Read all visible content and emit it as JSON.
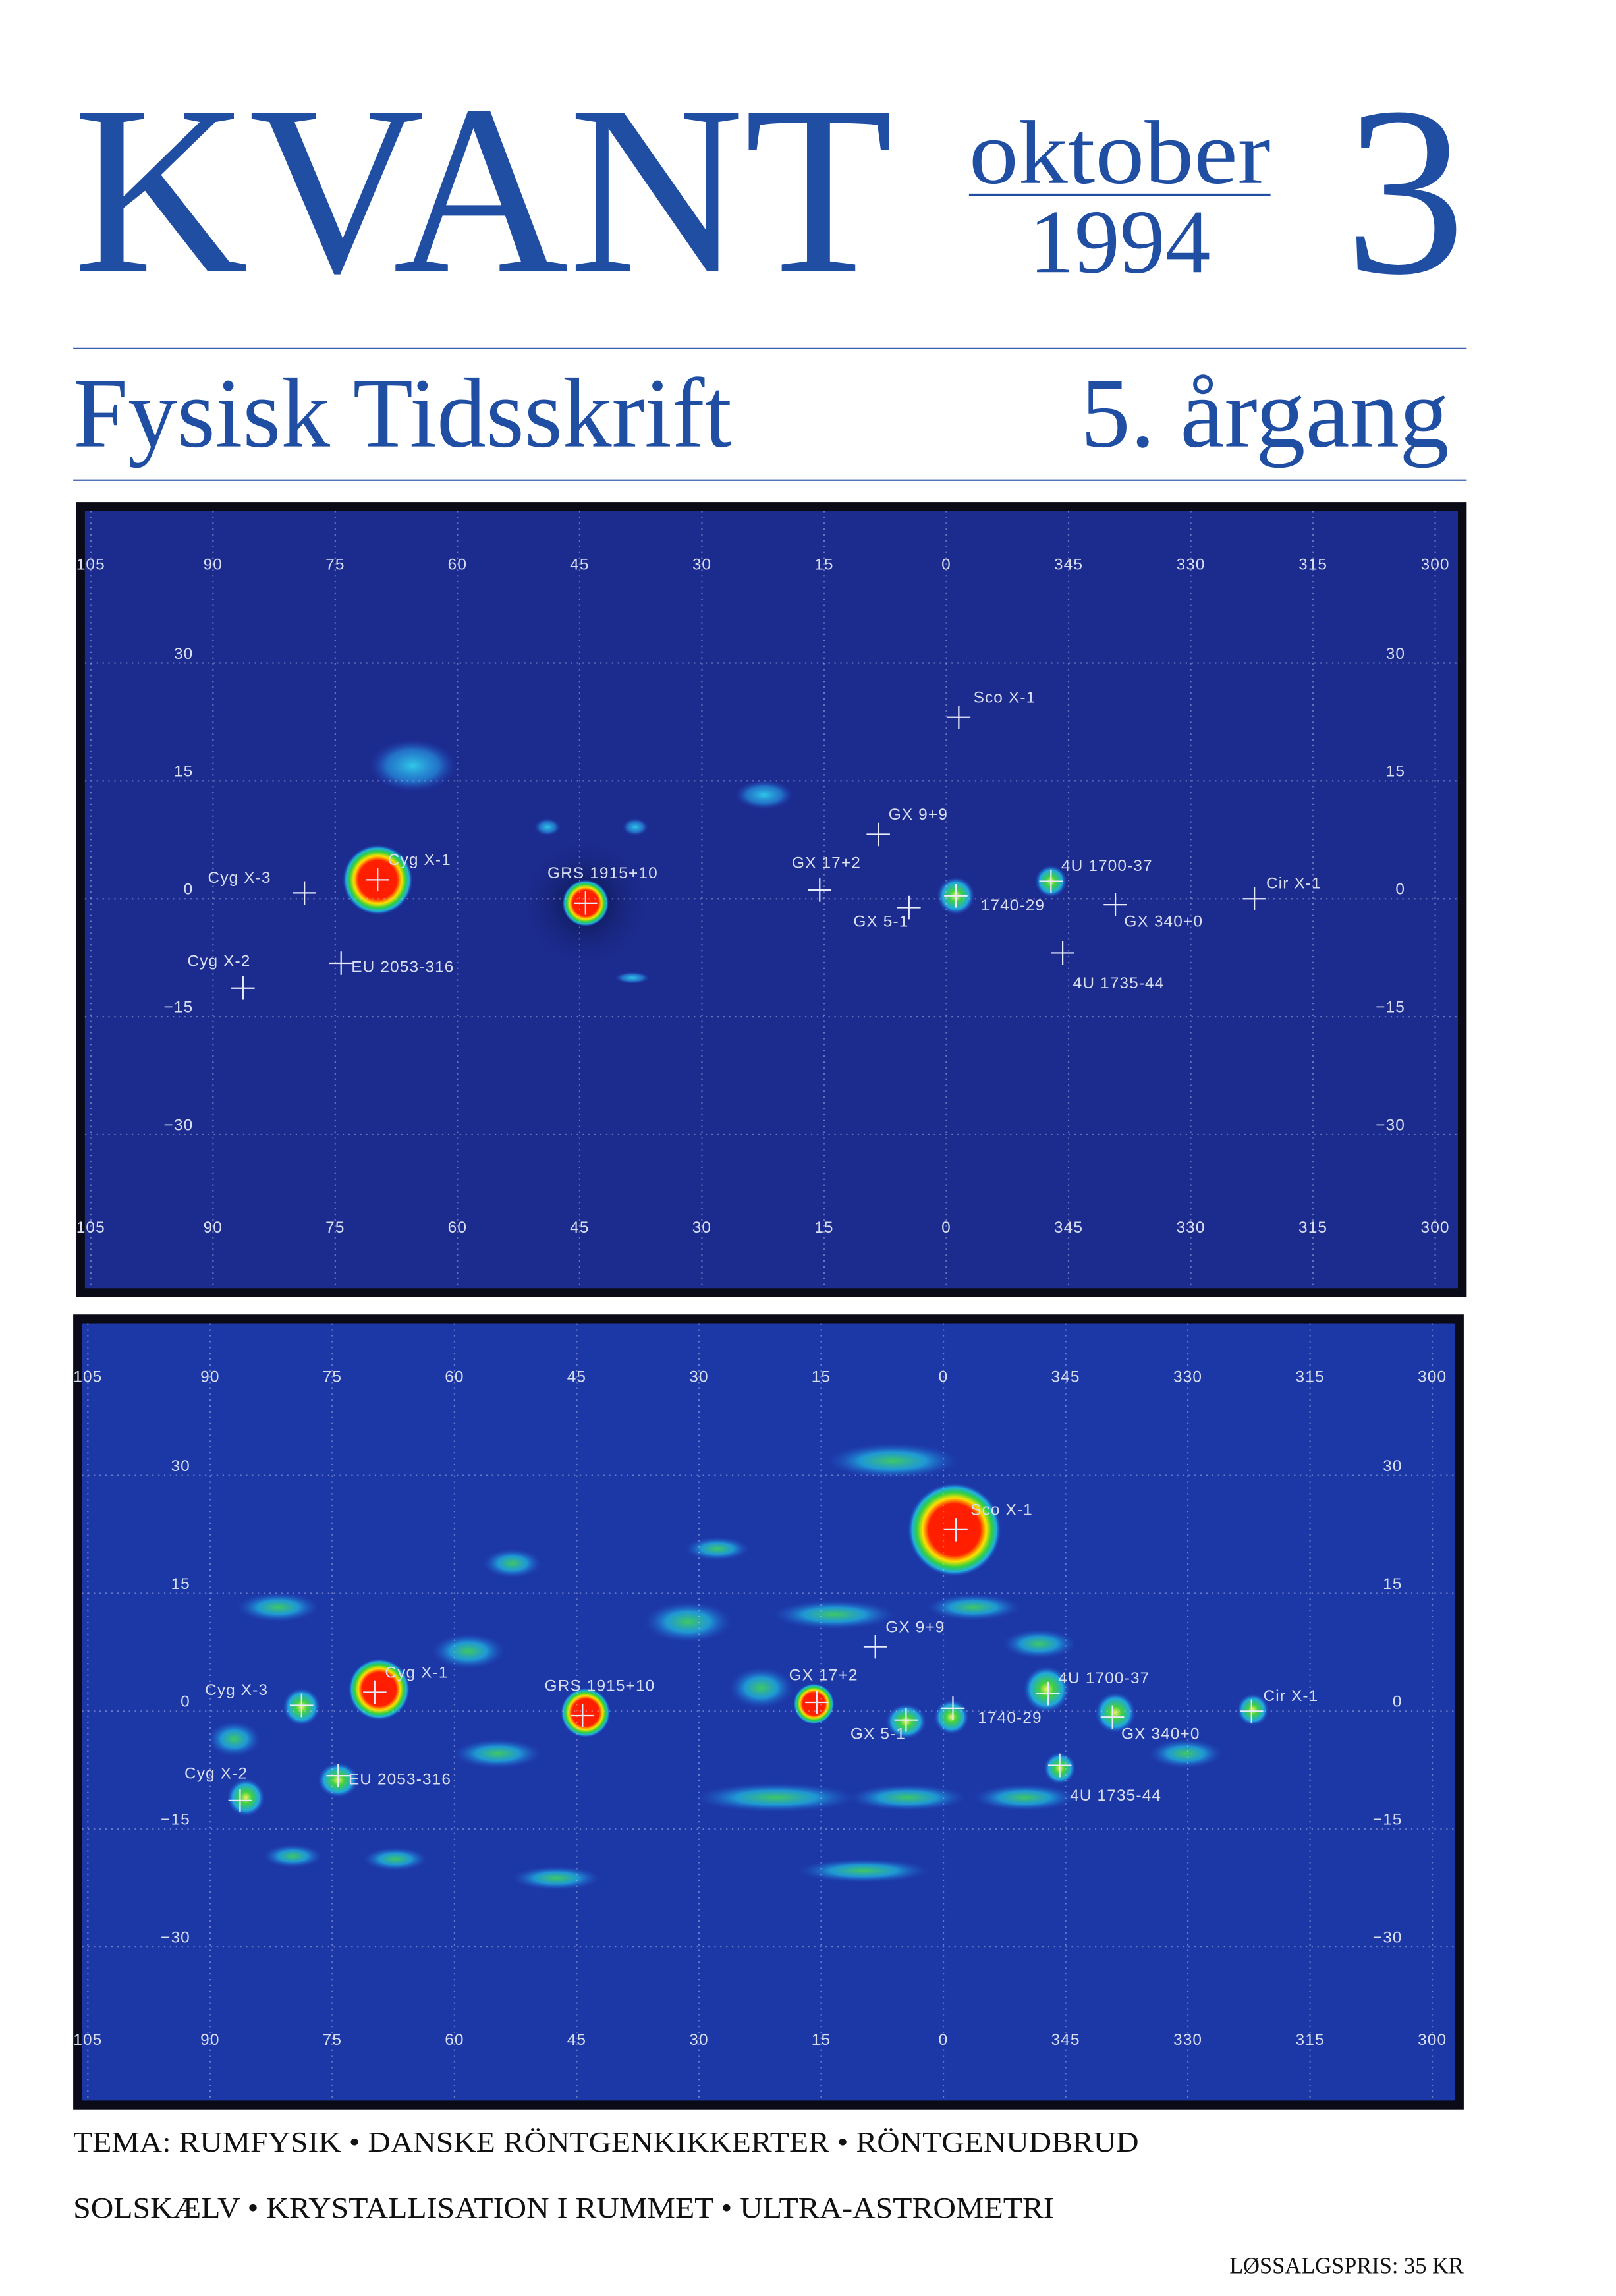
{
  "masthead": {
    "title": "KVANT",
    "month": "oktober",
    "year": "1994",
    "issue": "3"
  },
  "subheader": {
    "title": "Fysisk Tidsskrift",
    "volume": "5. årgang"
  },
  "maps": [
    {
      "lon_top": [
        "105",
        "90",
        "75",
        "60",
        "45",
        "30",
        "15",
        "0",
        "345",
        "330",
        "315",
        "300"
      ],
      "lon_bottom": [
        "105",
        "90",
        "75",
        "60",
        "45",
        "30",
        "15",
        "0",
        "345",
        "330",
        "315",
        "300"
      ],
      "lat_left": [
        "30",
        "15",
        "0",
        "−15",
        "−30"
      ],
      "lat_right": [
        "30",
        "15",
        "0",
        "−15",
        "−30"
      ],
      "sources": [
        "Sco X-1",
        "GX 9+9",
        "Cyg X-3",
        "Cyg X-1",
        "GRS 1915+10",
        "GX 17+2",
        "GX 5-1",
        "1740-29",
        "4U 1700-37",
        "GX 340+0",
        "Cir X-1",
        "Cyg X-2",
        "EU 2053-316",
        "4U 1735-44"
      ]
    },
    {
      "lon_top": [
        "105",
        "90",
        "75",
        "60",
        "45",
        "30",
        "15",
        "0",
        "345",
        "330",
        "315",
        "300"
      ],
      "lon_bottom": [
        "105",
        "90",
        "75",
        "60",
        "45",
        "30",
        "15",
        "0",
        "345",
        "330",
        "315",
        "300"
      ],
      "lat_left": [
        "30",
        "15",
        "0",
        "−15",
        "−30"
      ],
      "lat_right": [
        "30",
        "15",
        "0",
        "−15",
        "−30"
      ],
      "sources": [
        "Sco X-1",
        "GX 9+9",
        "Cyg X-3",
        "Cyg X-1",
        "GRS 1915+10",
        "GX 17+2",
        "GX 5-1",
        "1740-29",
        "4U 1700-37",
        "GX 340+0",
        "Cir X-1",
        "Cyg X-2",
        "EU 2053-316",
        "4U 1735-44"
      ]
    }
  ],
  "footer": {
    "themes": [
      "TEMA: RUMFYSIK • DANSKE RÖNTGENKIKKERTER • RÖNTGENUDBRUD",
      "SOLSKÆLV • KRYSTALLISATION I RUMMET • ULTRA-ASTROMETRI"
    ],
    "price": "LØSSALGSPRIS: 35 KR"
  }
}
